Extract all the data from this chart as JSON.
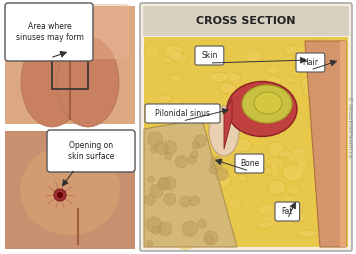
{
  "title": "CROSS SECTION",
  "watermark": "© AboutKidsHealth.ca",
  "bg_color": "#ffffff",
  "border_color": "#cccccc",
  "labels": {
    "area_where": "Area where\nsinuses may form",
    "opening": "Opening on\nskin surface",
    "skin": "Skin",
    "hair": "Hair",
    "pilonidal": "Pilonidal sinus",
    "bone": "Bone",
    "fat": "Fat"
  },
  "colors": {
    "skin_flesh": "#d4956a",
    "skin_light": "#e8b896",
    "fat_yellow": "#e8c84a",
    "fat_light": "#f0d878",
    "bone_tan": "#c8a878",
    "bone_dark": "#a08060",
    "sinus_red": "#c04040",
    "sinus_dark": "#8b2020",
    "sinus_green": "#a0a030",
    "sinus_inner": "#d4c860",
    "skin_surface": "#d4a070",
    "cross_bg": "#e8d8a0",
    "callout_bg": "#ffffff",
    "callout_border": "#555555",
    "text_color": "#222222",
    "title_color": "#333333",
    "box_bg": "#d4b896"
  }
}
